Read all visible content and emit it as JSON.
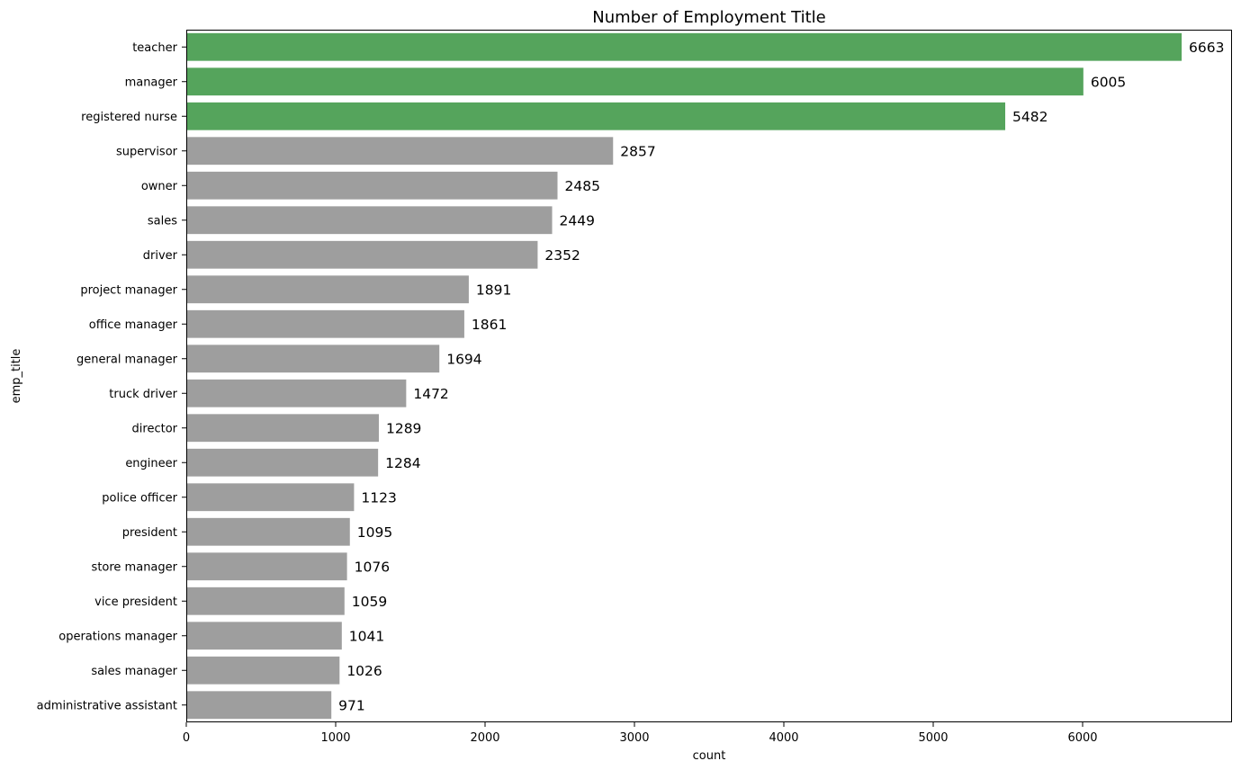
{
  "chart_data": {
    "type": "bar",
    "orientation": "horizontal",
    "title": "Number of Employment Title",
    "xlabel": "count",
    "ylabel": "emp_title",
    "xlim": [
      0,
      7000
    ],
    "xticks": [
      "0",
      "1000",
      "2000",
      "3000",
      "4000",
      "5000",
      "6000"
    ],
    "xtick_values": [
      0,
      1000,
      2000,
      3000,
      4000,
      5000,
      6000
    ],
    "grid": false,
    "colors": {
      "highlight": "#55a45c",
      "default": "#9e9e9e"
    },
    "categories": [
      "teacher",
      "manager",
      "registered nurse",
      "supervisor",
      "owner",
      "sales",
      "driver",
      "project manager",
      "office manager",
      "general manager",
      "truck driver",
      "director",
      "engineer",
      "police officer",
      "president",
      "store manager",
      "vice president",
      "operations manager",
      "sales manager",
      "administrative assistant"
    ],
    "values": [
      6663,
      6005,
      5482,
      2857,
      2485,
      2449,
      2352,
      1891,
      1861,
      1694,
      1472,
      1289,
      1284,
      1123,
      1095,
      1076,
      1059,
      1041,
      1026,
      971
    ],
    "value_labels": [
      "6663",
      "6005",
      "5482",
      "2857",
      "2485",
      "2449",
      "2352",
      "1891",
      "1861",
      "1694",
      "1472",
      "1289",
      "1284",
      "1123",
      "1095",
      "1076",
      "1059",
      "1041",
      "1026",
      "971"
    ],
    "highlighted_top_n": 3
  }
}
